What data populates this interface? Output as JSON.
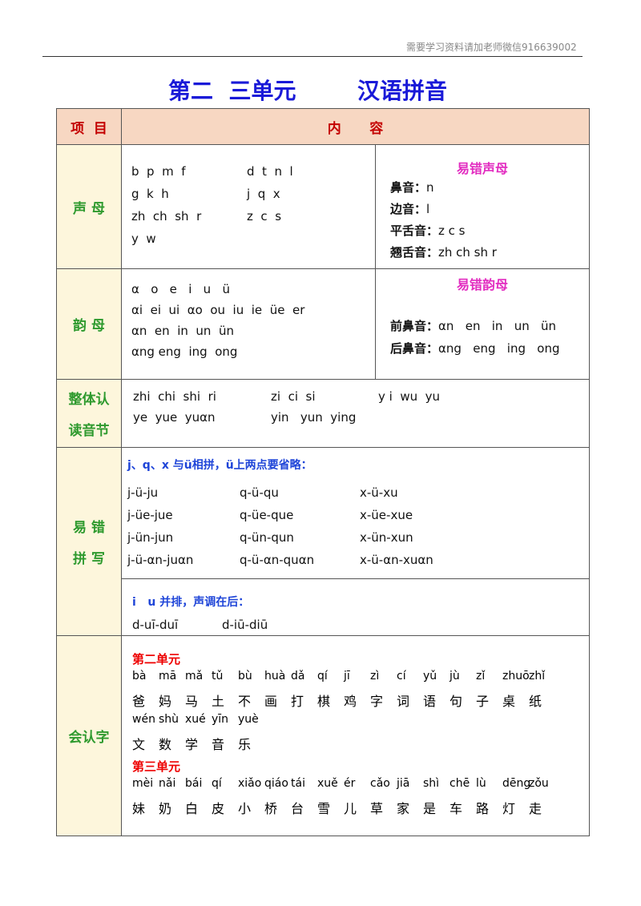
{
  "header": {
    "watermark": "需要学习资料请加老师微信916639002"
  },
  "title": {
    "parts": [
      "第二  三单元",
      "汉语拼音"
    ]
  },
  "table": {
    "head": [
      "项  目",
      "内      容"
    ],
    "rows": [
      {
        "label": [
          "声 母"
        ],
        "lines": [
          [
            "b  p  m  f",
            "d  t  n  l"
          ],
          [
            "g  k  h",
            "j  q  x"
          ],
          [
            "zh  ch  sh  r",
            "z  c  s"
          ],
          [
            "y  w"
          ]
        ],
        "side": {
          "title": "易错声母",
          "items": [
            {
              "key": "鼻音：",
              "val": "n"
            },
            {
              "key": "边音：",
              "val": "l"
            },
            {
              "key": "平舌音：",
              "val": "z c s"
            },
            {
              "key": "翘舌音：",
              "val": "zh ch sh r"
            }
          ]
        }
      },
      {
        "label": [
          "韵 母"
        ],
        "lines": [
          [
            "α   o   e   i   u   ü"
          ],
          [
            "αi  ei  ui  αo  ou  iu  ie  üe  er"
          ],
          [
            "αn  en  in  un  ün"
          ],
          [
            "αng eng  ing  ong"
          ]
        ],
        "side": {
          "title": "易错韵母",
          "items": [
            {
              "key": "前鼻音：",
              "val": "αn   en   in   un   ün"
            },
            {
              "key": "后鼻音：",
              "val": "αng   eng   ing   ong"
            }
          ]
        }
      },
      {
        "label": [
          "整体认",
          "读音节"
        ],
        "lines": [
          [
            "zhi  chi  shi  ri",
            "zi  ci  si",
            "y i  wu  yu"
          ],
          [
            "ye  yue  yuαn",
            "yin   yun  ying"
          ]
        ]
      },
      {
        "label": [
          "易 错",
          "拼 写"
        ],
        "sections": [
          {
            "heading": "j、q、x 与ü相拼，ü上两点要省略：",
            "lines": [
              [
                "j-ü-ju",
                "q-ü-qu",
                "x-ü-xu"
              ],
              [
                "j-üe-jue",
                "q-üe-que",
                "x-üe-xue"
              ],
              [
                "j-ün-jun",
                "q-ün-qun",
                "x-ün-xun"
              ],
              [
                "j-ü-αn-juαn",
                "q-ü-αn-quαn",
                "x-ü-αn-xuαn"
              ]
            ]
          },
          {
            "heading": "i   u 并排，声调在后：",
            "lines": [
              [
                "d-uī-duī",
                "d-iū-diū"
              ]
            ]
          }
        ]
      },
      {
        "label": [
          "会认字"
        ],
        "groups": [
          {
            "heading": "第二单元",
            "words": [
              {
                "py": "bà",
                "hz": "爸"
              },
              {
                "py": "mā",
                "hz": "妈"
              },
              {
                "py": "mǎ",
                "hz": "马"
              },
              {
                "py": "tǔ",
                "hz": "土"
              },
              {
                "py": "bù",
                "hz": "不"
              },
              {
                "py": "huà",
                "hz": "画"
              },
              {
                "py": "dǎ",
                "hz": "打"
              },
              {
                "py": "qí",
                "hz": "棋"
              },
              {
                "py": "jī",
                "hz": "鸡"
              },
              {
                "py": "zì",
                "hz": "字"
              },
              {
                "py": "cí",
                "hz": "词"
              },
              {
                "py": "yǔ",
                "hz": "语"
              },
              {
                "py": "jù",
                "hz": "句"
              },
              {
                "py": "zǐ",
                "hz": "子"
              },
              {
                "py": "zhuō",
                "hz": "桌"
              },
              {
                "py": "zhǐ",
                "hz": "纸"
              },
              {
                "py": "wén",
                "hz": "文"
              },
              {
                "py": "shù",
                "hz": "数"
              },
              {
                "py": "xué",
                "hz": "学"
              },
              {
                "py": "yīn",
                "hz": "音"
              },
              {
                "py": "yuè",
                "hz": "乐"
              }
            ]
          },
          {
            "heading": "第三单元",
            "words": [
              {
                "py": "mèi",
                "hz": "妹"
              },
              {
                "py": "nǎi",
                "hz": "奶"
              },
              {
                "py": "bái",
                "hz": "白"
              },
              {
                "py": "qí",
                "hz": "皮"
              },
              {
                "py": "xiǎo",
                "hz": "小"
              },
              {
                "py": "qiáo",
                "hz": "桥"
              },
              {
                "py": "tái",
                "hz": "台"
              },
              {
                "py": "xuě",
                "hz": "雪"
              },
              {
                "py": "ér",
                "hz": "儿"
              },
              {
                "py": "cǎo",
                "hz": "草"
              },
              {
                "py": "jiā",
                "hz": "家"
              },
              {
                "py": "shì",
                "hz": "是"
              },
              {
                "py": "chē",
                "hz": "车"
              },
              {
                "py": "lù",
                "hz": "路"
              },
              {
                "py": "dēng",
                "hz": "灯"
              },
              {
                "py": "zǒu",
                "hz": "走"
              }
            ]
          }
        ]
      }
    ]
  }
}
